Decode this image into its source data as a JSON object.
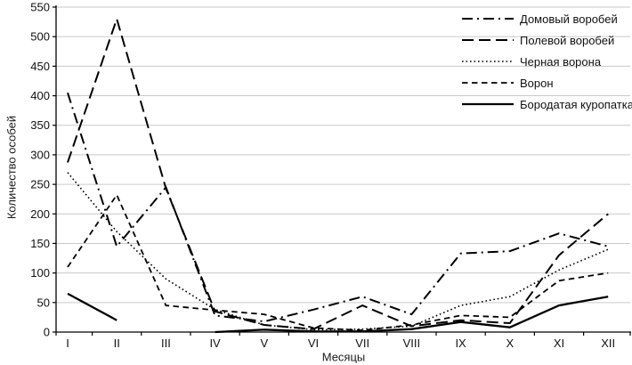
{
  "chart_data": {
    "type": "line",
    "title": "",
    "xlabel": "Месяцы",
    "ylabel": "Количество особей",
    "categories": [
      "I",
      "II",
      "III",
      "IV",
      "V",
      "VI",
      "VII",
      "VIII",
      "IX",
      "X",
      "XI",
      "XII"
    ],
    "ylim": [
      0,
      550
    ],
    "ytick_step": 50,
    "yticks": [
      0,
      50,
      100,
      150,
      200,
      250,
      300,
      350,
      400,
      450,
      500,
      550
    ],
    "grid": true,
    "legend_position": "top-right",
    "line_color": "#000000",
    "gridline_color": "#c9c9c9",
    "series": [
      {
        "name": "Домовый воробей",
        "dash": "dashdot",
        "values": [
          405,
          145,
          245,
          28,
          18,
          38,
          60,
          30,
          133,
          137,
          167,
          145
        ]
      },
      {
        "name": "Полевой воробей",
        "dash": "longdash",
        "values": [
          287,
          530,
          243,
          35,
          12,
          5,
          45,
          10,
          20,
          15,
          130,
          200
        ]
      },
      {
        "name": "Черная ворона",
        "dash": "dotted",
        "values": [
          270,
          170,
          90,
          38,
          12,
          4,
          5,
          10,
          45,
          60,
          105,
          140
        ]
      },
      {
        "name": "Ворон",
        "dash": "shortdash",
        "values": [
          110,
          232,
          45,
          37,
          30,
          7,
          3,
          12,
          28,
          25,
          87,
          100
        ]
      },
      {
        "name": "Бородатая куропатка",
        "dash": "solid",
        "values": [
          65,
          20,
          null,
          0,
          4,
          1,
          1,
          5,
          17,
          8,
          45,
          60
        ]
      }
    ]
  }
}
